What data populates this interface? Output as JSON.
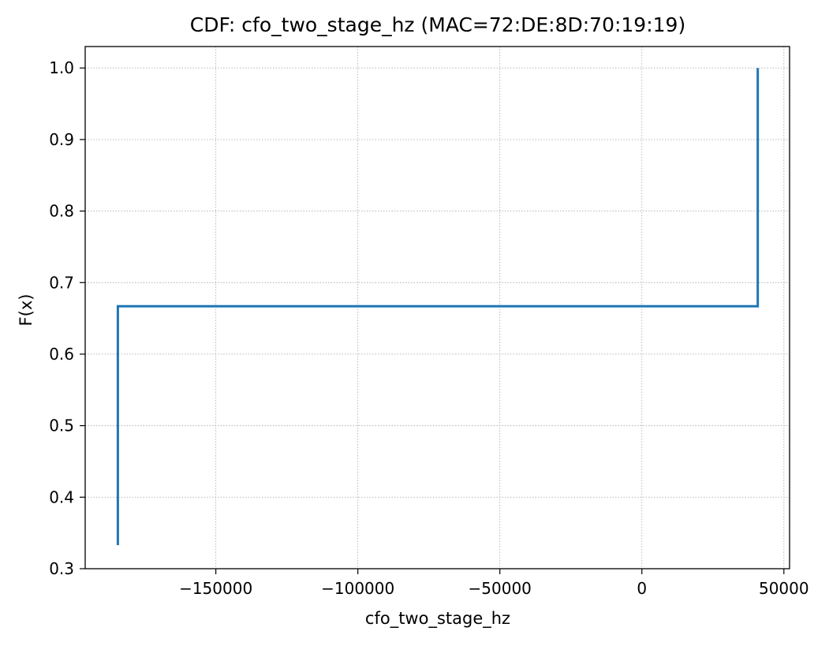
{
  "chart_data": {
    "type": "line",
    "title": "CDF: cfo_two_stage_hz (MAC=72:DE:8D:70:19:19)",
    "xlabel": "cfo_two_stage_hz",
    "ylabel": "F(x)",
    "xlim": [
      -196000,
      52000
    ],
    "ylim": [
      0.3,
      1.03
    ],
    "xticks": [
      -150000,
      -100000,
      -50000,
      0,
      50000
    ],
    "xtick_labels": [
      "−150000",
      "−100000",
      "−50000",
      "0",
      "50000"
    ],
    "yticks": [
      0.3,
      0.4,
      0.5,
      0.6,
      0.7,
      0.8,
      0.9,
      1.0
    ],
    "ytick_labels": [
      "0.3",
      "0.4",
      "0.5",
      "0.6",
      "0.7",
      "0.8",
      "0.9",
      "1.0"
    ],
    "grid": true,
    "step": "post",
    "series": [
      {
        "color": "#1f77b4",
        "x": [
          -184500,
          -184500,
          40800,
          40800
        ],
        "y": [
          0.333,
          0.667,
          0.667,
          1.0
        ]
      }
    ]
  }
}
